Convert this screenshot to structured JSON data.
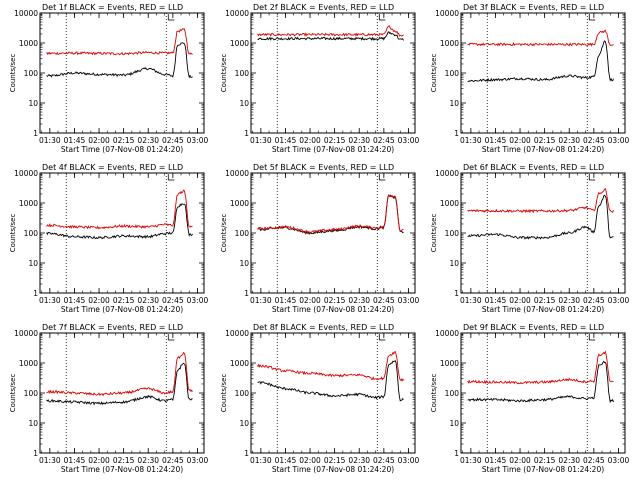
{
  "chart_data": [
    {
      "type": "line",
      "title": "Det 1f BLACK = Events, RED = LLD",
      "xlabel": "Start Time (07-Nov-08 01:24:20)",
      "ylabel": "Counts/sec",
      "yscale": "log",
      "ylim": [
        1,
        10000
      ],
      "xlim": [
        "01:24",
        "03:04"
      ],
      "x": [
        "01:30",
        "01:45",
        "02:00",
        "02:15",
        "02:30",
        "02:40",
        "02:45",
        "02:48",
        "02:52",
        "02:55"
      ],
      "series": [
        {
          "name": "Events",
          "color": "#000000",
          "values": [
            80,
            100,
            90,
            85,
            140,
            90,
            80,
            900,
            1000,
            75
          ]
        },
        {
          "name": "LLD",
          "color": "#dd0000",
          "values": [
            450,
            460,
            450,
            440,
            480,
            460,
            470,
            2500,
            2800,
            430
          ]
        }
      ],
      "annotations": [
        "01:40",
        "02:41"
      ],
      "grid": false
    },
    {
      "type": "line",
      "title": "Det 2f BLACK = Events, RED = LLD",
      "xlabel": "Start Time (07-Nov-08 01:24:20)",
      "ylabel": "Counts/sec",
      "yscale": "log",
      "ylim": [
        1,
        10000
      ],
      "xlim": [
        "01:24",
        "03:04"
      ],
      "x": [
        "01:30",
        "01:45",
        "02:00",
        "02:15",
        "02:30",
        "02:40",
        "02:45",
        "02:48",
        "02:52",
        "02:55"
      ],
      "series": [
        {
          "name": "Events",
          "color": "#000000",
          "values": [
            1400,
            1400,
            1400,
            1400,
            1400,
            1400,
            1400,
            2200,
            1900,
            1300
          ]
        },
        {
          "name": "LLD",
          "color": "#dd0000",
          "values": [
            1900,
            1900,
            1900,
            1900,
            1900,
            1900,
            1900,
            3500,
            2500,
            1800
          ]
        }
      ],
      "annotations": [
        "01:40",
        "02:41"
      ],
      "grid": false
    },
    {
      "type": "line",
      "title": "Det 3f BLACK = Events, RED = LLD",
      "xlabel": "Start Time (07-Nov-08 01:24:20)",
      "ylabel": "Counts/sec",
      "yscale": "log",
      "ylim": [
        1,
        10000
      ],
      "xlim": [
        "01:24",
        "03:04"
      ],
      "x": [
        "01:30",
        "01:45",
        "02:00",
        "02:15",
        "02:30",
        "02:40",
        "02:45",
        "02:48",
        "02:52",
        "02:55"
      ],
      "series": [
        {
          "name": "Events",
          "color": "#000000",
          "values": [
            55,
            60,
            65,
            60,
            80,
            70,
            75,
            400,
            1200,
            60
          ]
        },
        {
          "name": "LLD",
          "color": "#dd0000",
          "values": [
            900,
            900,
            900,
            900,
            900,
            900,
            900,
            2200,
            2500,
            880
          ]
        }
      ],
      "annotations": [
        "01:40",
        "02:41"
      ],
      "grid": false
    },
    {
      "type": "line",
      "title": "Det 4f BLACK = Events, RED = LLD",
      "xlabel": "Start Time (07-Nov-08 01:24:20)",
      "ylabel": "Counts/sec",
      "yscale": "log",
      "ylim": [
        1,
        10000
      ],
      "xlim": [
        "01:24",
        "03:04"
      ],
      "x": [
        "01:30",
        "01:45",
        "02:00",
        "02:15",
        "02:30",
        "02:40",
        "02:45",
        "02:48",
        "02:52",
        "02:55"
      ],
      "series": [
        {
          "name": "Events",
          "color": "#000000",
          "values": [
            95,
            75,
            70,
            80,
            75,
            95,
            100,
            800,
            1000,
            90
          ]
        },
        {
          "name": "LLD",
          "color": "#dd0000",
          "values": [
            180,
            160,
            150,
            170,
            160,
            190,
            180,
            2000,
            2500,
            170
          ]
        }
      ],
      "annotations": [
        "01:40",
        "02:41"
      ],
      "grid": false
    },
    {
      "type": "line",
      "title": "Det 5f BLACK = Events, RED = LLD",
      "xlabel": "Start Time (07-Nov-08 01:24:20)",
      "ylabel": "Counts/sec",
      "yscale": "log",
      "ylim": [
        1,
        10000
      ],
      "xlim": [
        "01:24",
        "03:04"
      ],
      "x": [
        "01:30",
        "01:45",
        "02:00",
        "02:15",
        "02:30",
        "02:40",
        "02:45",
        "02:48",
        "02:52",
        "02:55"
      ],
      "series": [
        {
          "name": "Events",
          "color": "#000000",
          "values": [
            130,
            150,
            100,
            120,
            160,
            140,
            150,
            1800,
            1500,
            110
          ]
        },
        {
          "name": "LLD",
          "color": "#dd0000",
          "values": [
            140,
            160,
            110,
            130,
            170,
            150,
            160,
            1900,
            1600,
            120
          ]
        }
      ],
      "annotations": [
        "01:40",
        "02:41"
      ],
      "grid": false
    },
    {
      "type": "line",
      "title": "Det 6f BLACK = Events, RED = LLD",
      "xlabel": "Start Time (07-Nov-08 01:24:20)",
      "ylabel": "Counts/sec",
      "yscale": "log",
      "ylim": [
        1,
        10000
      ],
      "xlim": [
        "01:24",
        "03:04"
      ],
      "x": [
        "01:30",
        "01:45",
        "02:00",
        "02:15",
        "02:30",
        "02:40",
        "02:45",
        "02:48",
        "02:52",
        "02:55"
      ],
      "series": [
        {
          "name": "Events",
          "color": "#000000",
          "values": [
            80,
            90,
            70,
            70,
            100,
            160,
            110,
            800,
            1800,
            70
          ]
        },
        {
          "name": "LLD",
          "color": "#dd0000",
          "values": [
            550,
            550,
            540,
            540,
            560,
            700,
            550,
            2000,
            2800,
            530
          ]
        }
      ],
      "annotations": [
        "01:40",
        "02:41"
      ],
      "grid": false
    },
    {
      "type": "line",
      "title": "Det 7f BLACK = Events, RED = LLD",
      "xlabel": "Start Time (07-Nov-08 01:24:20)",
      "ylabel": "Counts/sec",
      "yscale": "log",
      "ylim": [
        1,
        10000
      ],
      "xlim": [
        "01:24",
        "03:04"
      ],
      "x": [
        "01:30",
        "01:45",
        "02:00",
        "02:15",
        "02:30",
        "02:40",
        "02:45",
        "02:48",
        "02:52",
        "02:55"
      ],
      "series": [
        {
          "name": "Events",
          "color": "#000000",
          "values": [
            55,
            50,
            45,
            50,
            75,
            55,
            60,
            600,
            1000,
            60
          ]
        },
        {
          "name": "LLD",
          "color": "#dd0000",
          "values": [
            110,
            100,
            90,
            100,
            140,
            100,
            110,
            1500,
            2200,
            120
          ]
        }
      ],
      "annotations": [
        "01:40",
        "02:41"
      ],
      "grid": false
    },
    {
      "type": "line",
      "title": "Det 8f BLACK = Events, RED = LLD",
      "xlabel": "Start Time (07-Nov-08 01:24:20)",
      "ylabel": "Counts/sec",
      "yscale": "log",
      "ylim": [
        1,
        10000
      ],
      "xlim": [
        "01:24",
        "03:04"
      ],
      "x": [
        "01:30",
        "01:45",
        "02:00",
        "02:15",
        "02:30",
        "02:40",
        "02:45",
        "02:48",
        "02:52",
        "02:55"
      ],
      "series": [
        {
          "name": "Events",
          "color": "#000000",
          "values": [
            220,
            140,
            100,
            80,
            90,
            70,
            75,
            900,
            1200,
            60
          ]
        },
        {
          "name": "LLD",
          "color": "#dd0000",
          "values": [
            800,
            550,
            450,
            380,
            400,
            300,
            310,
            1800,
            2300,
            280
          ]
        }
      ],
      "annotations": [
        "01:40",
        "02:41"
      ],
      "grid": false
    },
    {
      "type": "line",
      "title": "Det 9f BLACK = Events, RED = LLD",
      "xlabel": "Start Time (07-Nov-08 01:24:20)",
      "ylabel": "Counts/sec",
      "yscale": "log",
      "ylim": [
        1,
        10000
      ],
      "xlim": [
        "01:24",
        "03:04"
      ],
      "x": [
        "01:30",
        "01:45",
        "02:00",
        "02:15",
        "02:30",
        "02:40",
        "02:45",
        "02:48",
        "02:52",
        "02:55"
      ],
      "series": [
        {
          "name": "Events",
          "color": "#000000",
          "values": [
            60,
            60,
            55,
            60,
            75,
            65,
            70,
            800,
            1100,
            55
          ]
        },
        {
          "name": "LLD",
          "color": "#dd0000",
          "values": [
            240,
            230,
            220,
            230,
            280,
            240,
            250,
            1800,
            2200,
            230
          ]
        }
      ],
      "annotations": [
        "01:40",
        "02:41"
      ],
      "grid": false
    }
  ],
  "x_ticks": [
    "01:30",
    "01:45",
    "02:00",
    "02:15",
    "02:30",
    "02:45",
    "03:00"
  ],
  "y_ticks": [
    "1",
    "10",
    "100",
    "1000",
    "10000"
  ],
  "marker_label": "L"
}
